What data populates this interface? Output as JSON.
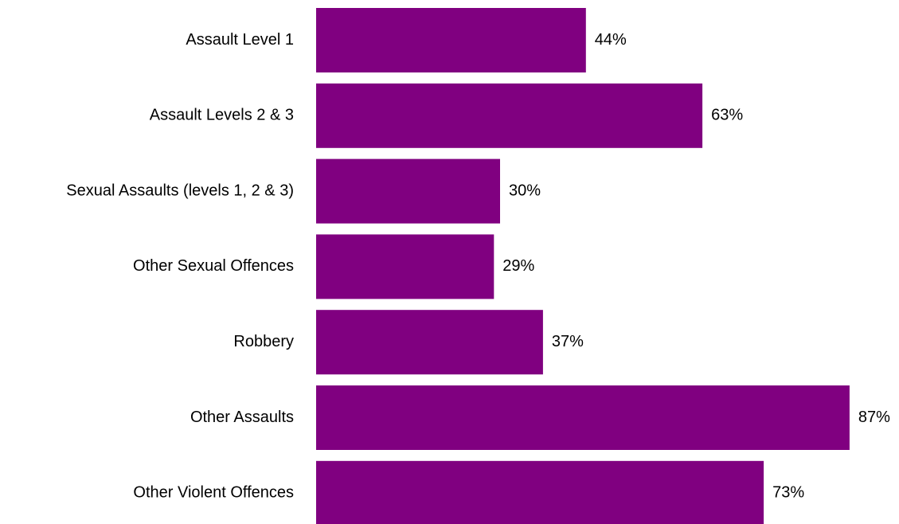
{
  "chart_data": {
    "type": "bar",
    "orientation": "horizontal",
    "categories": [
      "Assault Level 1",
      "Assault Levels 2 & 3",
      "Sexual Assaults (levels 1, 2 & 3)",
      "Other Sexual Offences",
      "Robbery",
      "Other Assaults",
      "Other Violent Offences"
    ],
    "values": [
      44,
      63,
      30,
      29,
      37,
      87,
      73
    ],
    "value_labels": [
      "44%",
      "63%",
      "30%",
      "29%",
      "37%",
      "87%",
      "73%"
    ],
    "value_unit": "%",
    "xlim": [
      0,
      100
    ],
    "grid": false,
    "legend": "none",
    "bar_color": "#800080"
  }
}
